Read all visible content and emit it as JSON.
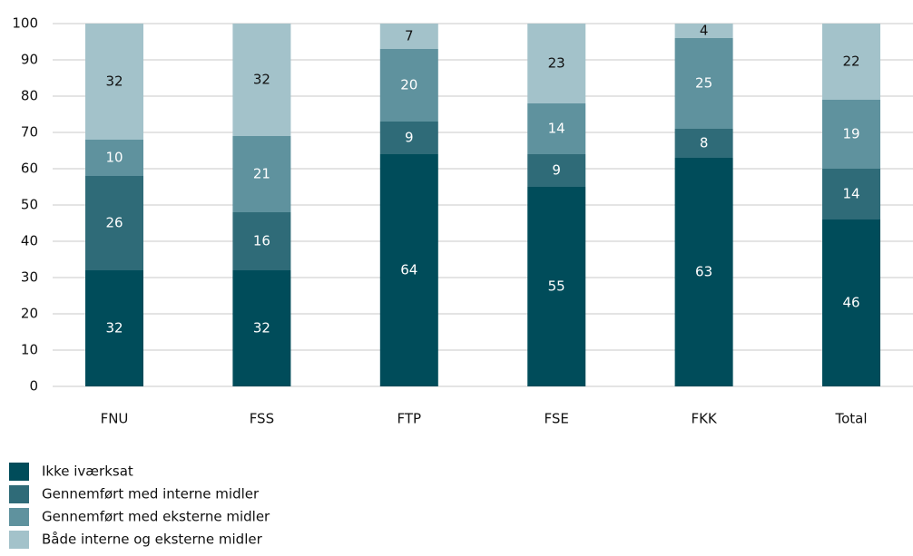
{
  "chart_data": {
    "type": "stacked_bar",
    "categories": [
      "FNU",
      "FSS",
      "FTP",
      "FSE",
      "FKK",
      "Total"
    ],
    "series": [
      {
        "name": "Ikke iværksat",
        "color": "#004c5a",
        "values": [
          32,
          32,
          64,
          55,
          63,
          46
        ]
      },
      {
        "name": "Gennemført med interne midler",
        "color": "#2f6b78",
        "values": [
          26,
          16,
          9,
          9,
          8,
          14
        ]
      },
      {
        "name": "Gennemført med eksterne midler",
        "color": "#5f929e",
        "values": [
          10,
          21,
          20,
          14,
          25,
          19
        ]
      },
      {
        "name": "Både interne og eksterne midler",
        "color": "#a3c2ca",
        "values": [
          32,
          32,
          7,
          23,
          4,
          22
        ]
      }
    ],
    "ylim": [
      0,
      100
    ],
    "yticks": [
      0,
      10,
      20,
      30,
      40,
      50,
      60,
      70,
      80,
      90,
      100
    ],
    "grid": true
  }
}
